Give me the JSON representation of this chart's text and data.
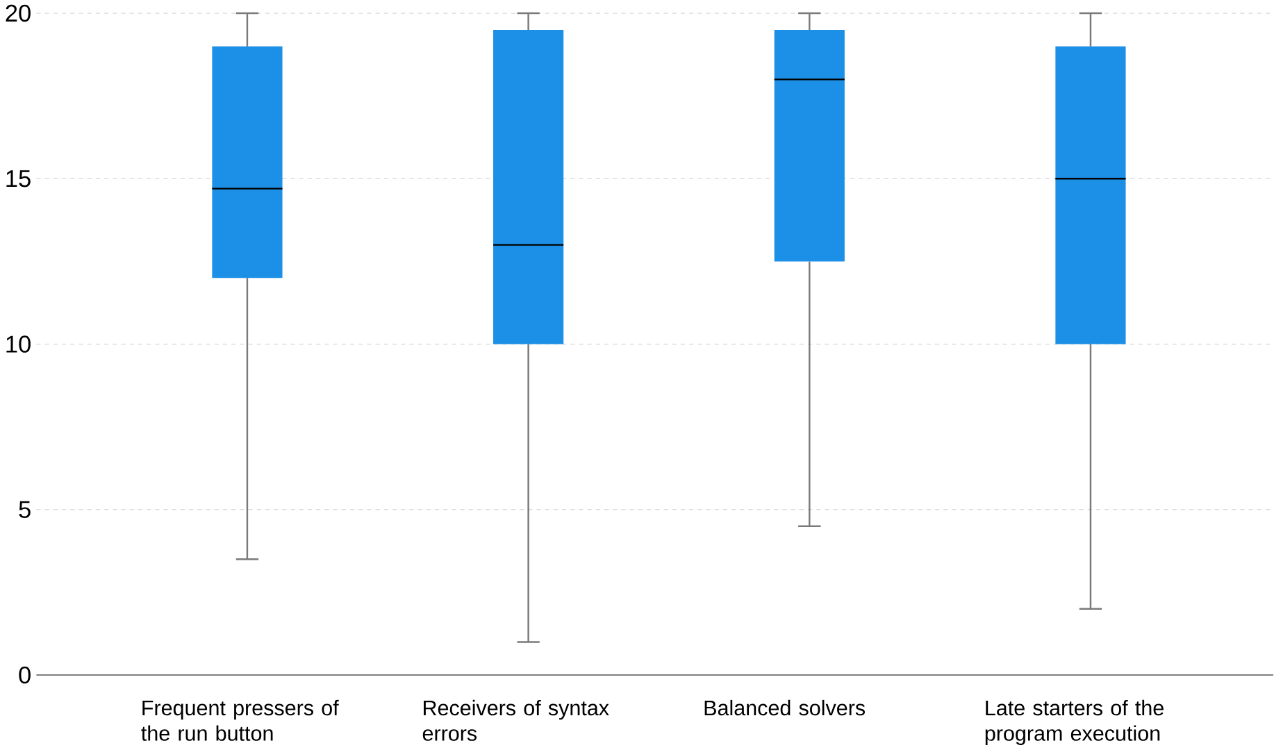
{
  "chart_data": {
    "type": "box",
    "categories": [
      "Frequent pressers of the run button",
      "Receivers of syntax errors",
      "Balanced solvers",
      "Late starters of the program execution"
    ],
    "boxes": [
      {
        "low": 3.5,
        "q1": 12,
        "median": 14.7,
        "q3": 19,
        "high": 20
      },
      {
        "low": 1,
        "q1": 10,
        "median": 13,
        "q3": 19.5,
        "high": 20
      },
      {
        "low": 4.5,
        "q1": 12.5,
        "median": 18,
        "q3": 19.5,
        "high": 20
      },
      {
        "low": 2,
        "q1": 10,
        "median": 15,
        "q3": 19,
        "high": 20
      }
    ],
    "color": "#1c8fe6",
    "ylim": [
      0,
      20
    ],
    "yticks": [
      0,
      5,
      10,
      15,
      20
    ],
    "grid": "y"
  }
}
